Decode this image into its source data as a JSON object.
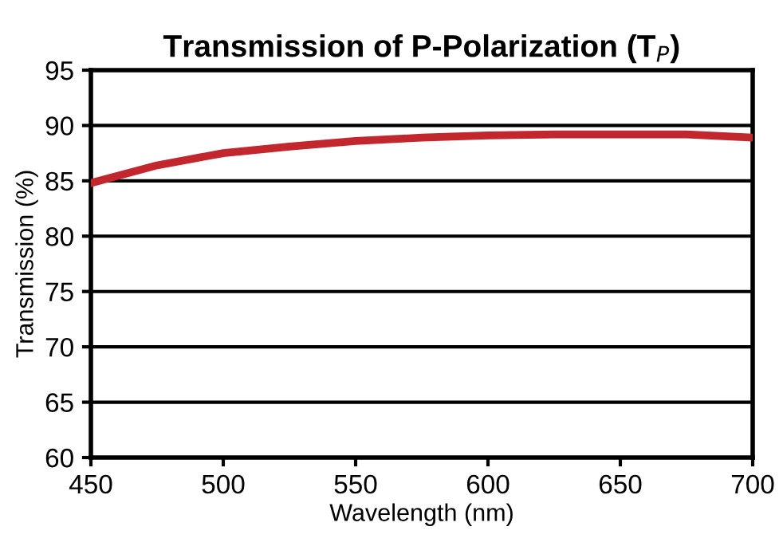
{
  "chart_data": {
    "type": "line",
    "title": "Transmission of P-Polarization (T$_{P}$)",
    "xlabel": "Wavelength (nm)",
    "ylabel": "Transmission (%)",
    "series": [
      {
        "color": "#c1272d",
        "x": [
          450,
          475,
          500,
          525,
          550,
          575,
          600,
          625,
          650,
          675,
          700
        ],
        "values": [
          84.8,
          86.4,
          87.5,
          88.1,
          88.6,
          88.9,
          89.1,
          89.2,
          89.2,
          89.2,
          88.9
        ]
      }
    ],
    "xlim": [
      450,
      700
    ],
    "xticks": [
      450,
      500,
      550,
      600,
      650,
      700
    ],
    "ylim": [
      60,
      95
    ],
    "yticks": [
      60,
      65,
      70,
      75,
      80,
      85,
      90,
      95
    ],
    "grid": "y",
    "line_style": "solid",
    "marker": "none"
  }
}
